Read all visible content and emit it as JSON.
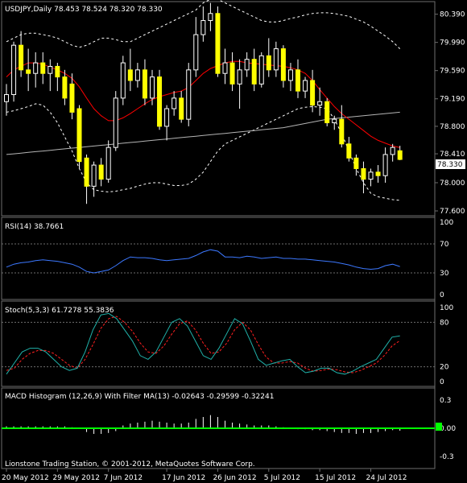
{
  "chart_data": {
    "type": "candlestick",
    "symbol_header": "USDJPY,Daily  78.453 78.524 78.320 78.330",
    "last_price_label": "78.330",
    "footer": "Lionstone Trading Station, © 2001-2012, MetaQuotes Software Corp.",
    "colors": {
      "background": "#000000",
      "grid": "#6e6e6e",
      "text": "#ffffff",
      "candle_up": "#ffffff",
      "candle_down": "#ffff00",
      "ma_red": "#ff0000",
      "ma_slow": "#b4b4b4",
      "bands": "#ffffff",
      "rsi": "#3c78ff",
      "stoch_main": "#20b2aa",
      "stoch_signal": "#ff2020",
      "macd_hist": "#ffffff",
      "macd_filter": "#00ff00"
    },
    "price_panel": {
      "y_ticks": [
        80.39,
        79.99,
        79.59,
        79.19,
        78.8,
        78.41,
        78.0,
        77.6
      ],
      "y_tick_labels": [
        "80.390",
        "79.990",
        "79.590",
        "79.190",
        "78.800",
        "78.410",
        "78.000",
        "77.600"
      ],
      "ylim": [
        77.6,
        80.5
      ],
      "candles": [
        {
          "o": 79.15,
          "h": 79.4,
          "l": 78.95,
          "c": 79.25
        },
        {
          "o": 79.25,
          "h": 80.0,
          "l": 79.15,
          "c": 79.95
        },
        {
          "o": 79.95,
          "h": 80.15,
          "l": 79.5,
          "c": 79.6
        },
        {
          "o": 79.6,
          "h": 79.9,
          "l": 79.3,
          "c": 79.55
        },
        {
          "o": 79.55,
          "h": 79.85,
          "l": 79.35,
          "c": 79.7
        },
        {
          "o": 79.7,
          "h": 79.85,
          "l": 79.4,
          "c": 79.55
        },
        {
          "o": 79.55,
          "h": 79.75,
          "l": 79.3,
          "c": 79.65
        },
        {
          "o": 79.65,
          "h": 79.7,
          "l": 79.3,
          "c": 79.5
        },
        {
          "o": 79.5,
          "h": 79.6,
          "l": 79.1,
          "c": 79.2
        },
        {
          "o": 79.4,
          "h": 79.55,
          "l": 78.9,
          "c": 79.0
        },
        {
          "o": 79.05,
          "h": 79.1,
          "l": 78.2,
          "c": 78.3
        },
        {
          "o": 78.35,
          "h": 78.4,
          "l": 77.7,
          "c": 77.95
        },
        {
          "o": 77.95,
          "h": 78.3,
          "l": 77.8,
          "c": 78.25
        },
        {
          "o": 78.25,
          "h": 78.35,
          "l": 77.95,
          "c": 78.05
        },
        {
          "o": 78.05,
          "h": 78.6,
          "l": 78.0,
          "c": 78.5
        },
        {
          "o": 78.5,
          "h": 79.3,
          "l": 78.45,
          "c": 79.2
        },
        {
          "o": 79.2,
          "h": 79.8,
          "l": 79.1,
          "c": 79.7
        },
        {
          "o": 79.6,
          "h": 79.9,
          "l": 79.3,
          "c": 79.45
        },
        {
          "o": 79.45,
          "h": 79.7,
          "l": 79.35,
          "c": 79.6
        },
        {
          "o": 79.6,
          "h": 79.75,
          "l": 79.1,
          "c": 79.2
        },
        {
          "o": 79.2,
          "h": 79.6,
          "l": 79.1,
          "c": 79.5
        },
        {
          "o": 79.5,
          "h": 79.6,
          "l": 78.75,
          "c": 78.8
        },
        {
          "o": 78.8,
          "h": 79.1,
          "l": 78.6,
          "c": 79.05
        },
        {
          "o": 79.05,
          "h": 79.3,
          "l": 78.95,
          "c": 79.2
        },
        {
          "o": 79.2,
          "h": 79.3,
          "l": 78.85,
          "c": 78.9
        },
        {
          "o": 78.9,
          "h": 79.7,
          "l": 78.8,
          "c": 79.6
        },
        {
          "o": 79.6,
          "h": 80.35,
          "l": 79.5,
          "c": 80.1
        },
        {
          "o": 80.1,
          "h": 80.5,
          "l": 80.0,
          "c": 80.3
        },
        {
          "o": 80.3,
          "h": 80.55,
          "l": 80.15,
          "c": 80.4
        },
        {
          "o": 80.4,
          "h": 80.5,
          "l": 79.5,
          "c": 79.55
        },
        {
          "o": 79.55,
          "h": 79.9,
          "l": 79.4,
          "c": 79.7
        },
        {
          "o": 79.7,
          "h": 79.85,
          "l": 79.3,
          "c": 79.4
        },
        {
          "o": 79.4,
          "h": 79.75,
          "l": 79.05,
          "c": 79.6
        },
        {
          "o": 79.6,
          "h": 79.85,
          "l": 79.5,
          "c": 79.75
        },
        {
          "o": 79.75,
          "h": 79.9,
          "l": 79.3,
          "c": 79.4
        },
        {
          "o": 79.4,
          "h": 79.85,
          "l": 79.35,
          "c": 79.8
        },
        {
          "o": 79.8,
          "h": 80.05,
          "l": 79.5,
          "c": 79.6
        },
        {
          "o": 79.6,
          "h": 80.0,
          "l": 79.5,
          "c": 79.9
        },
        {
          "o": 79.9,
          "h": 79.95,
          "l": 79.35,
          "c": 79.45
        },
        {
          "o": 79.45,
          "h": 79.7,
          "l": 79.3,
          "c": 79.6
        },
        {
          "o": 79.6,
          "h": 79.75,
          "l": 79.2,
          "c": 79.3
        },
        {
          "o": 79.3,
          "h": 79.5,
          "l": 79.2,
          "c": 79.45
        },
        {
          "o": 79.45,
          "h": 79.6,
          "l": 79.0,
          "c": 79.1
        },
        {
          "o": 79.1,
          "h": 79.35,
          "l": 78.95,
          "c": 79.15
        },
        {
          "o": 79.15,
          "h": 79.2,
          "l": 78.8,
          "c": 78.85
        },
        {
          "o": 78.85,
          "h": 78.95,
          "l": 78.75,
          "c": 78.9
        },
        {
          "o": 78.9,
          "h": 79.1,
          "l": 78.5,
          "c": 78.55
        },
        {
          "o": 78.55,
          "h": 78.65,
          "l": 78.3,
          "c": 78.35
        },
        {
          "o": 78.35,
          "h": 78.4,
          "l": 78.1,
          "c": 78.2
        },
        {
          "o": 78.2,
          "h": 78.3,
          "l": 77.85,
          "c": 78.05
        },
        {
          "o": 78.05,
          "h": 78.2,
          "l": 77.95,
          "c": 78.15
        },
        {
          "o": 78.15,
          "h": 78.25,
          "l": 78.0,
          "c": 78.1
        },
        {
          "o": 78.1,
          "h": 78.5,
          "l": 78.0,
          "c": 78.4
        },
        {
          "o": 78.4,
          "h": 78.55,
          "l": 78.3,
          "c": 78.5
        },
        {
          "o": 78.453,
          "h": 78.524,
          "l": 78.32,
          "c": 78.33
        }
      ],
      "ma_red": [
        79.5,
        79.6,
        79.65,
        79.7,
        79.7,
        79.68,
        79.64,
        79.6,
        79.55,
        79.48,
        79.36,
        79.2,
        79.05,
        78.95,
        78.88,
        78.88,
        78.92,
        78.98,
        79.05,
        79.12,
        79.18,
        79.22,
        79.25,
        79.28,
        79.3,
        79.35,
        79.45,
        79.55,
        79.62,
        79.66,
        79.7,
        79.72,
        79.72,
        79.7,
        79.69,
        79.68,
        79.67,
        79.66,
        79.65,
        79.63,
        79.6,
        79.55,
        79.45,
        79.32,
        79.2,
        79.08,
        78.98,
        78.9,
        78.82,
        78.74,
        78.66,
        78.6,
        78.56,
        78.52,
        78.5
      ],
      "ma_slow": [
        78.4,
        78.41,
        78.42,
        78.43,
        78.44,
        78.45,
        78.46,
        78.47,
        78.48,
        78.49,
        78.5,
        78.51,
        78.52,
        78.53,
        78.54,
        78.55,
        78.56,
        78.57,
        78.58,
        78.59,
        78.6,
        78.61,
        78.62,
        78.63,
        78.64,
        78.65,
        78.66,
        78.67,
        78.68,
        78.69,
        78.7,
        78.71,
        78.72,
        78.73,
        78.74,
        78.75,
        78.76,
        78.77,
        78.78,
        78.8,
        78.82,
        78.84,
        78.86,
        78.88,
        78.9,
        78.91,
        78.92,
        78.93,
        78.94,
        78.95,
        78.96,
        78.97,
        78.98,
        78.99,
        79.0
      ],
      "band_upper": [
        80.0,
        80.05,
        80.1,
        80.12,
        80.12,
        80.1,
        80.08,
        80.05,
        80.0,
        79.95,
        79.92,
        79.95,
        80.0,
        80.05,
        80.05,
        80.03,
        80.0,
        80.0,
        80.05,
        80.1,
        80.15,
        80.2,
        80.25,
        80.3,
        80.35,
        80.4,
        80.45,
        80.55,
        80.6,
        80.6,
        80.55,
        80.5,
        80.45,
        80.4,
        80.35,
        80.3,
        80.28,
        80.28,
        80.3,
        80.33,
        80.35,
        80.38,
        80.4,
        80.41,
        80.41,
        80.4,
        80.38,
        80.36,
        80.32,
        80.28,
        80.22,
        80.15,
        80.08,
        80.0,
        79.9
      ],
      "band_lower": [
        79.0,
        79.02,
        79.05,
        79.08,
        79.12,
        79.1,
        79.0,
        78.85,
        78.65,
        78.45,
        78.2,
        78.0,
        77.9,
        77.88,
        77.87,
        77.88,
        77.9,
        77.92,
        77.95,
        77.98,
        78.0,
        78.0,
        77.98,
        77.96,
        77.96,
        77.98,
        78.05,
        78.15,
        78.3,
        78.45,
        78.55,
        78.6,
        78.65,
        78.7,
        78.75,
        78.8,
        78.85,
        78.9,
        78.95,
        79.0,
        79.05,
        79.07,
        79.08,
        79.07,
        79.05,
        78.9,
        78.7,
        78.45,
        78.2,
        78.0,
        77.85,
        77.8,
        77.78,
        77.76,
        77.75
      ]
    },
    "rsi_panel": {
      "title": "RSI(14) 38.7661",
      "y_tick_labels": [
        "100",
        "70",
        "30",
        "0"
      ],
      "y_ticks": [
        100,
        70,
        30,
        0
      ],
      "levels": [
        70,
        30
      ],
      "ylim": [
        0,
        100
      ],
      "values": [
        38,
        42,
        44,
        45,
        47,
        48,
        47,
        46,
        44,
        42,
        38,
        32,
        30,
        32,
        34,
        40,
        47,
        52,
        51,
        51,
        50,
        48,
        47,
        48,
        49,
        50,
        54,
        59,
        62,
        60,
        52,
        52,
        51,
        53,
        52,
        50,
        51,
        52,
        50,
        50,
        49,
        49,
        48,
        47,
        46,
        45,
        43,
        41,
        38,
        36,
        35,
        36,
        40,
        42,
        38.77
      ]
    },
    "stoch_panel": {
      "title": "Stoch(5,3,3) 61.7278 55.3836",
      "y_tick_labels": [
        "100",
        "80",
        "20",
        "0"
      ],
      "y_ticks": [
        100,
        80,
        20,
        0
      ],
      "levels": [
        80,
        20
      ],
      "ylim": [
        0,
        100
      ],
      "main": [
        10,
        25,
        40,
        45,
        45,
        40,
        30,
        20,
        15,
        18,
        40,
        70,
        90,
        92,
        85,
        70,
        55,
        35,
        30,
        40,
        60,
        80,
        85,
        75,
        55,
        35,
        30,
        45,
        65,
        85,
        78,
        55,
        30,
        22,
        25,
        28,
        30,
        20,
        12,
        14,
        18,
        18,
        12,
        10,
        14,
        20,
        25,
        30,
        45,
        60,
        61.73
      ],
      "signal": [
        15,
        18,
        30,
        38,
        42,
        42,
        38,
        30,
        22,
        18,
        30,
        50,
        72,
        85,
        88,
        80,
        68,
        52,
        40,
        38,
        48,
        64,
        78,
        82,
        70,
        52,
        38,
        40,
        52,
        70,
        80,
        70,
        50,
        33,
        25,
        25,
        27,
        25,
        18,
        14,
        15,
        17,
        16,
        13,
        12,
        15,
        20,
        25,
        35,
        48,
        55.38
      ]
    },
    "macd_panel": {
      "title": "MACD Histogram (12,26,9) With Filter MA(13) -0.02643 -0.29599 -0.32241",
      "y_tick_labels": [
        "0.3",
        "0.00",
        "-0.3"
      ],
      "y_ticks": [
        0.3,
        0.0,
        -0.3
      ],
      "ylim": [
        -0.36,
        0.36
      ],
      "histogram": [
        0.02,
        0.02,
        0.02,
        0.02,
        0.02,
        0.02,
        0.02,
        0.02,
        0.02,
        0.01,
        0.0,
        -0.04,
        -0.06,
        -0.06,
        -0.05,
        -0.03,
        0.03,
        0.05,
        0.06,
        0.07,
        0.08,
        0.07,
        0.06,
        0.05,
        0.05,
        0.06,
        0.1,
        0.12,
        0.14,
        0.12,
        0.08,
        0.06,
        0.05,
        0.04,
        0.03,
        0.03,
        0.03,
        0.02,
        0.01,
        0.0,
        -0.01,
        -0.01,
        -0.02,
        -0.02,
        -0.03,
        -0.04,
        -0.05,
        -0.05,
        -0.06,
        -0.05,
        -0.05,
        -0.04,
        -0.03,
        -0.02,
        -0.026
      ],
      "filter_ma": 0.0
    },
    "x_tick_labels": [
      "20 May 2012",
      "29 May 2012",
      "7 Jun 2012",
      "17 Jun 2012",
      "26 Jun 2012",
      "5 Jul 2012",
      "15 Jul 2012",
      "24 Jul 2012"
    ],
    "x_tick_candle_index": [
      0,
      7,
      14,
      22,
      29,
      36,
      43,
      50
    ]
  }
}
